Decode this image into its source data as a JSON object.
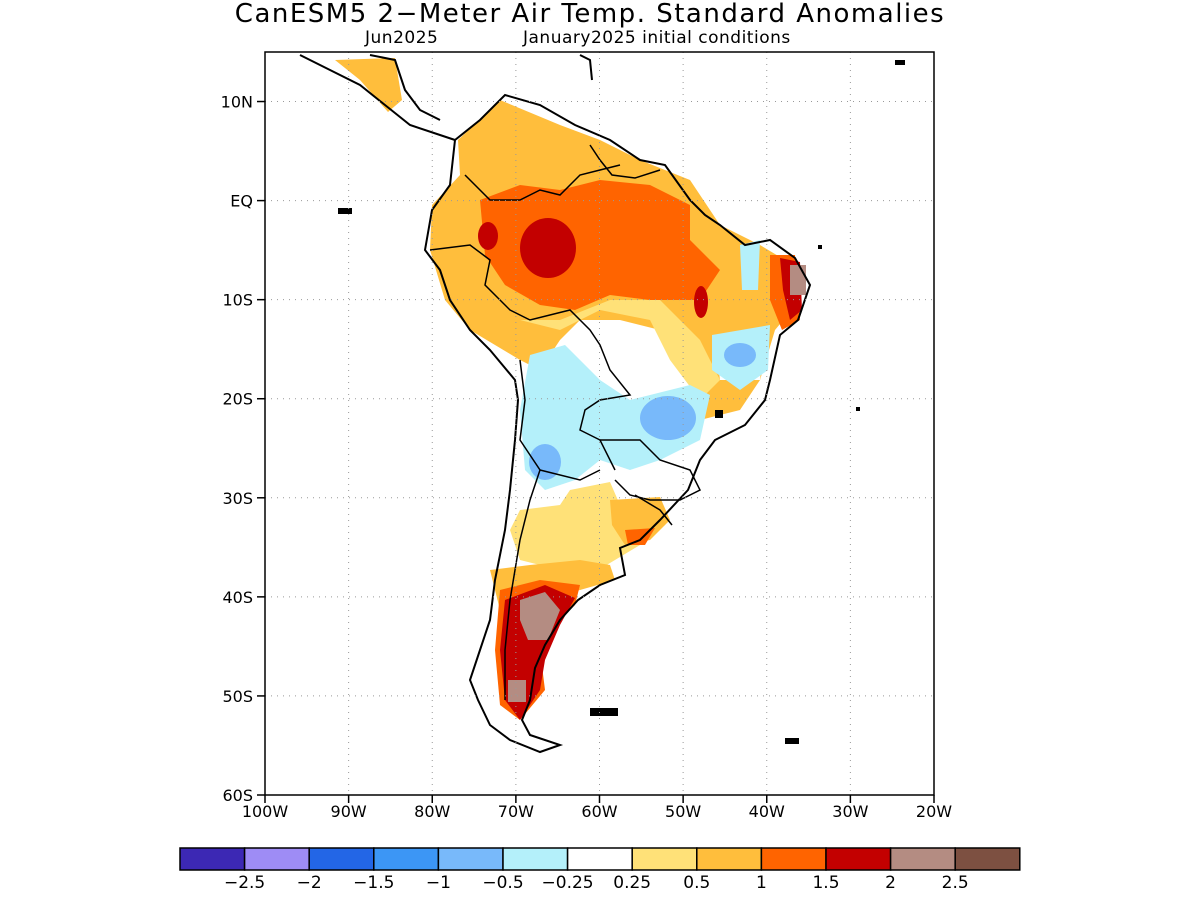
{
  "title": "CanESM5 2−Meter Air Temp. Standard Anomalies",
  "subtitle_left": "Jun2025",
  "subtitle_right": "January2025 initial conditions",
  "map": {
    "lon_range": [
      -100,
      -20
    ],
    "lat_range": [
      -60,
      15
    ],
    "lon_ticks": [
      {
        "v": -100,
        "label": "100W"
      },
      {
        "v": -90,
        "label": "90W"
      },
      {
        "v": -80,
        "label": "80W"
      },
      {
        "v": -70,
        "label": "70W"
      },
      {
        "v": -60,
        "label": "60W"
      },
      {
        "v": -50,
        "label": "50W"
      },
      {
        "v": -40,
        "label": "40W"
      },
      {
        "v": -30,
        "label": "30W"
      },
      {
        "v": -20,
        "label": "20W"
      }
    ],
    "lat_ticks": [
      {
        "v": 10,
        "label": "10N"
      },
      {
        "v": 0,
        "label": "EQ"
      },
      {
        "v": -10,
        "label": "10S"
      },
      {
        "v": -20,
        "label": "20S"
      },
      {
        "v": -30,
        "label": "30S"
      },
      {
        "v": -40,
        "label": "40S"
      },
      {
        "v": -50,
        "label": "50S"
      },
      {
        "v": -60,
        "label": "60S"
      }
    ],
    "grid": "dotted"
  },
  "legend": {
    "colors": [
      "#3c28b4",
      "#9e8cf5",
      "#2366e6",
      "#3c96f5",
      "#78b9fa",
      "#b4f0fa",
      "#ffffff",
      "#ffe178",
      "#ffbe3c",
      "#ff6400",
      "#c30000",
      "#b48c82",
      "#7d5041"
    ],
    "labels": [
      "−2.5",
      "−2",
      "−1.5",
      "−1",
      "−0.5",
      "−0.25",
      "0.25",
      "0.5",
      "1",
      "1.5",
      "2",
      "2.5"
    ]
  }
}
